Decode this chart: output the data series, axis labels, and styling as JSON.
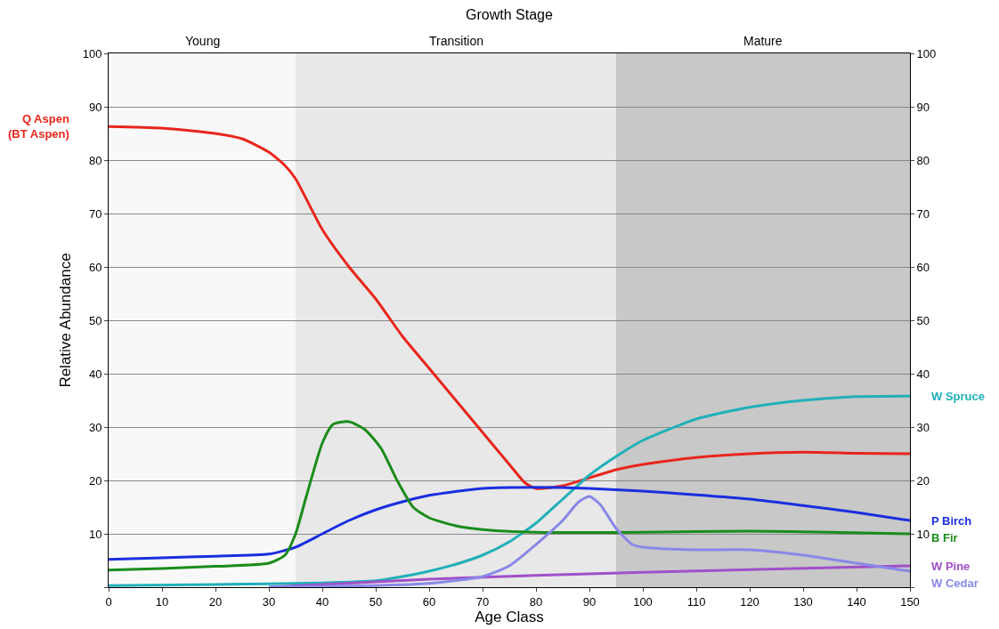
{
  "chart_data": {
    "type": "line",
    "title": "Growth Stage",
    "xlabel": "Age Class",
    "ylabel": "Relative Abundance",
    "xlim": [
      0,
      150
    ],
    "xticks": [
      0,
      10,
      20,
      30,
      40,
      50,
      60,
      70,
      80,
      90,
      100,
      110,
      120,
      130,
      140,
      150
    ],
    "ylim": [
      0,
      100
    ],
    "yticks": [
      {
        "value": 0,
        "label": null
      },
      10,
      20,
      30,
      40,
      50,
      60,
      70,
      80,
      90,
      100
    ],
    "y2lim": [
      0,
      100
    ],
    "y2ticks": [
      {
        "value": 0,
        "label": null
      },
      10,
      20,
      30,
      40,
      50,
      60,
      70,
      80,
      90,
      100
    ],
    "grid": "y",
    "legend": false,
    "marker": "none",
    "line_style": "solid",
    "bands": [
      {
        "axis": "x",
        "from": 0,
        "to": 35,
        "label": "Young",
        "color": "#f8f8f8"
      },
      {
        "axis": "x",
        "from": 35,
        "to": 95,
        "label": "Transition",
        "color": "#e8e8e8"
      },
      {
        "axis": "x",
        "from": 95,
        "to": 150,
        "label": "Mature",
        "color": "#c8c8c8"
      }
    ],
    "series": [
      {
        "name": "Q Aspen\n(BT Aspen)",
        "color": "#e8261c",
        "x": [
          0,
          10,
          20,
          25,
          30,
          33,
          35,
          40,
          45,
          50,
          55,
          60,
          65,
          70,
          75,
          78,
          80,
          85,
          90,
          95,
          100,
          110,
          120,
          130,
          140,
          150
        ],
        "values": [
          86.3,
          86,
          85,
          84,
          81.5,
          79,
          76.5,
          67,
          60,
          54,
          47,
          41,
          35,
          29,
          23,
          19.5,
          18.5,
          19,
          20.5,
          22,
          23,
          24.3,
          25,
          25.3,
          25.1,
          25
        ]
      },
      {
        "name": "W Spruce",
        "color": "#20b0b8",
        "x": [
          0,
          20,
          40,
          50,
          55,
          60,
          65,
          70,
          75,
          80,
          85,
          90,
          95,
          100,
          110,
          120,
          130,
          140,
          150
        ],
        "values": [
          0.3,
          0.5,
          0.8,
          1.2,
          2,
          3,
          4.3,
          6,
          8.5,
          12,
          16.5,
          21,
          24.5,
          27.5,
          31.5,
          33.7,
          35,
          35.7,
          35.8
        ]
      },
      {
        "name": "P Birch",
        "color": "#1a2ee0",
        "x": [
          0,
          10,
          20,
          30,
          35,
          40,
          45,
          50,
          55,
          60,
          70,
          80,
          90,
          100,
          110,
          120,
          130,
          140,
          150
        ],
        "values": [
          5.2,
          5.5,
          5.8,
          6.2,
          7.5,
          10,
          12.5,
          14.5,
          16,
          17.2,
          18.5,
          18.7,
          18.5,
          18,
          17.3,
          16.5,
          15.3,
          14,
          12.5
        ]
      },
      {
        "name": "B Fir",
        "color": "#1a8c1a",
        "x": [
          0,
          10,
          20,
          30,
          33,
          35,
          37,
          40,
          42,
          45,
          48,
          51,
          54,
          57,
          60,
          65,
          70,
          80,
          100,
          120,
          135,
          150
        ],
        "values": [
          3.2,
          3.5,
          3.9,
          4.5,
          6,
          10,
          17,
          27,
          30.5,
          31,
          29.5,
          26,
          20,
          15,
          13,
          11.5,
          10.8,
          10.3,
          10.3,
          10.5,
          10.3,
          10
        ]
      },
      {
        "name": "W Pine",
        "color": "#a050c8",
        "x": [
          30,
          50,
          60,
          80,
          100,
          120,
          150
        ],
        "values": [
          0,
          1,
          1.5,
          2.2,
          2.8,
          3.3,
          4
        ]
      },
      {
        "name": "W Cedar",
        "color": "#8888e8",
        "x": [
          30,
          50,
          60,
          70,
          75,
          80,
          85,
          88,
          90,
          92,
          95,
          98,
          100,
          110,
          120,
          130,
          140,
          150
        ],
        "values": [
          0,
          0.3,
          0.7,
          2,
          4,
          8,
          12.5,
          16,
          17,
          15.5,
          11,
          8,
          7.5,
          7,
          7,
          6,
          4.5,
          3
        ]
      }
    ]
  }
}
